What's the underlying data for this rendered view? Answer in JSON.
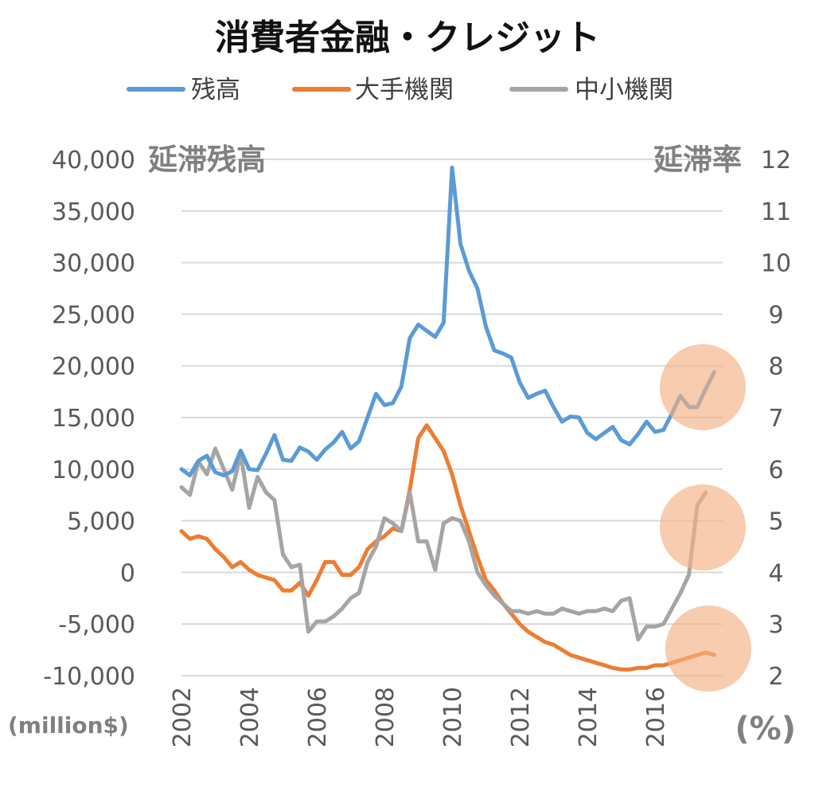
{
  "chart_data": {
    "type": "line",
    "title": "消費者金融・クレジット",
    "left_axis": {
      "label": "延滞残高",
      "unit": "(million$)",
      "ylim": [
        -10000,
        40000
      ],
      "ticks": [
        "40,000",
        "35,000",
        "30,000",
        "25,000",
        "20,000",
        "15,000",
        "10,000",
        "5,000",
        "0",
        "-5,000",
        "-10,000"
      ]
    },
    "right_axis": {
      "label": "延滞率",
      "unit": "(%)",
      "ylim": [
        2,
        12
      ],
      "ticks": [
        "12",
        "11",
        "10",
        "9",
        "8",
        "7",
        "6",
        "5",
        "4",
        "3",
        "2"
      ]
    },
    "x_ticks": [
      "2002",
      "2004",
      "2006",
      "2008",
      "2010",
      "2012",
      "2014",
      "2016"
    ],
    "xlim": [
      2002,
      2018
    ],
    "grid": "horizontal",
    "legend_position": "top",
    "series": [
      {
        "name": "残高",
        "axis": "left",
        "color": "#5b9bd5",
        "points": [
          [
            2002.0,
            10000
          ],
          [
            2002.25,
            9400
          ],
          [
            2002.5,
            10800
          ],
          [
            2002.75,
            11300
          ],
          [
            2003.0,
            9700
          ],
          [
            2003.25,
            9400
          ],
          [
            2003.5,
            9800
          ],
          [
            2003.75,
            11800
          ],
          [
            2004.0,
            10000
          ],
          [
            2004.25,
            9900
          ],
          [
            2004.5,
            11500
          ],
          [
            2004.75,
            13300
          ],
          [
            2005.0,
            10900
          ],
          [
            2005.25,
            10800
          ],
          [
            2005.5,
            12100
          ],
          [
            2005.75,
            11700
          ],
          [
            2006.0,
            10900
          ],
          [
            2006.25,
            11900
          ],
          [
            2006.5,
            12600
          ],
          [
            2006.75,
            13600
          ],
          [
            2007.0,
            12000
          ],
          [
            2007.25,
            12700
          ],
          [
            2007.5,
            15000
          ],
          [
            2007.75,
            17300
          ],
          [
            2008.0,
            16200
          ],
          [
            2008.25,
            16400
          ],
          [
            2008.5,
            18000
          ],
          [
            2008.75,
            22700
          ],
          [
            2009.0,
            24000
          ],
          [
            2009.25,
            23400
          ],
          [
            2009.5,
            22800
          ],
          [
            2009.75,
            24200
          ],
          [
            2010.0,
            39200
          ],
          [
            2010.25,
            31800
          ],
          [
            2010.5,
            29200
          ],
          [
            2010.75,
            27500
          ],
          [
            2011.0,
            23800
          ],
          [
            2011.25,
            21500
          ],
          [
            2011.5,
            21200
          ],
          [
            2011.75,
            20800
          ],
          [
            2012.0,
            18400
          ],
          [
            2012.25,
            16900
          ],
          [
            2012.5,
            17300
          ],
          [
            2012.75,
            17600
          ],
          [
            2013.0,
            16000
          ],
          [
            2013.25,
            14600
          ],
          [
            2013.5,
            15100
          ],
          [
            2013.75,
            15000
          ],
          [
            2014.0,
            13500
          ],
          [
            2014.25,
            12900
          ],
          [
            2014.5,
            13500
          ],
          [
            2014.75,
            14100
          ],
          [
            2015.0,
            12800
          ],
          [
            2015.25,
            12400
          ],
          [
            2015.5,
            13400
          ],
          [
            2015.75,
            14600
          ],
          [
            2016.0,
            13600
          ],
          [
            2016.25,
            13800
          ],
          [
            2016.5,
            15400
          ],
          [
            2016.75,
            17100
          ],
          [
            2017.0,
            16000
          ],
          [
            2017.25,
            16000
          ],
          [
            2017.5,
            17800
          ],
          [
            2017.75,
            19400
          ]
        ]
      },
      {
        "name": "大手機関",
        "axis": "right",
        "color": "#ed7d31",
        "points": [
          [
            2002.0,
            4.8
          ],
          [
            2002.25,
            4.65
          ],
          [
            2002.5,
            4.7
          ],
          [
            2002.75,
            4.65
          ],
          [
            2003.0,
            4.45
          ],
          [
            2003.25,
            4.3
          ],
          [
            2003.5,
            4.1
          ],
          [
            2003.75,
            4.2
          ],
          [
            2004.0,
            4.05
          ],
          [
            2004.25,
            3.95
          ],
          [
            2004.5,
            3.9
          ],
          [
            2004.75,
            3.85
          ],
          [
            2005.0,
            3.65
          ],
          [
            2005.25,
            3.65
          ],
          [
            2005.5,
            3.8
          ],
          [
            2005.75,
            3.55
          ],
          [
            2006.0,
            3.85
          ],
          [
            2006.25,
            4.2
          ],
          [
            2006.5,
            4.2
          ],
          [
            2006.75,
            3.95
          ],
          [
            2007.0,
            3.95
          ],
          [
            2007.25,
            4.1
          ],
          [
            2007.5,
            4.45
          ],
          [
            2007.75,
            4.6
          ],
          [
            2008.0,
            4.7
          ],
          [
            2008.25,
            4.85
          ],
          [
            2008.5,
            4.8
          ],
          [
            2008.75,
            5.6
          ],
          [
            2009.0,
            6.6
          ],
          [
            2009.25,
            6.85
          ],
          [
            2009.5,
            6.6
          ],
          [
            2009.75,
            6.35
          ],
          [
            2010.0,
            5.9
          ],
          [
            2010.25,
            5.3
          ],
          [
            2010.5,
            4.8
          ],
          [
            2010.75,
            4.3
          ],
          [
            2011.0,
            3.85
          ],
          [
            2011.25,
            3.65
          ],
          [
            2011.5,
            3.4
          ],
          [
            2011.75,
            3.2
          ],
          [
            2012.0,
            3.0
          ],
          [
            2012.25,
            2.85
          ],
          [
            2012.5,
            2.75
          ],
          [
            2012.75,
            2.65
          ],
          [
            2013.0,
            2.6
          ],
          [
            2013.25,
            2.5
          ],
          [
            2013.5,
            2.4
          ],
          [
            2013.75,
            2.35
          ],
          [
            2014.0,
            2.3
          ],
          [
            2014.25,
            2.25
          ],
          [
            2014.5,
            2.2
          ],
          [
            2014.75,
            2.15
          ],
          [
            2015.0,
            2.12
          ],
          [
            2015.25,
            2.12
          ],
          [
            2015.5,
            2.15
          ],
          [
            2015.75,
            2.15
          ],
          [
            2016.0,
            2.2
          ],
          [
            2016.25,
            2.2
          ],
          [
            2016.5,
            2.25
          ],
          [
            2016.75,
            2.3
          ],
          [
            2017.0,
            2.35
          ],
          [
            2017.25,
            2.4
          ],
          [
            2017.5,
            2.45
          ],
          [
            2017.75,
            2.4
          ]
        ]
      },
      {
        "name": "中小機関",
        "axis": "right",
        "color": "#a5a5a5",
        "points": [
          [
            2002.0,
            5.65
          ],
          [
            2002.25,
            5.5
          ],
          [
            2002.5,
            6.15
          ],
          [
            2002.75,
            5.9
          ],
          [
            2003.0,
            6.4
          ],
          [
            2003.25,
            6.0
          ],
          [
            2003.5,
            5.6
          ],
          [
            2003.75,
            6.3
          ],
          [
            2004.0,
            5.25
          ],
          [
            2004.25,
            5.85
          ],
          [
            2004.5,
            5.55
          ],
          [
            2004.75,
            5.4
          ],
          [
            2005.0,
            4.35
          ],
          [
            2005.25,
            4.1
          ],
          [
            2005.5,
            4.15
          ],
          [
            2005.75,
            2.85
          ],
          [
            2006.0,
            3.05
          ],
          [
            2006.25,
            3.05
          ],
          [
            2006.5,
            3.15
          ],
          [
            2006.75,
            3.3
          ],
          [
            2007.0,
            3.5
          ],
          [
            2007.25,
            3.6
          ],
          [
            2007.5,
            4.2
          ],
          [
            2007.75,
            4.5
          ],
          [
            2008.0,
            5.05
          ],
          [
            2008.25,
            4.95
          ],
          [
            2008.5,
            4.8
          ],
          [
            2008.75,
            5.55
          ],
          [
            2009.0,
            4.6
          ],
          [
            2009.25,
            4.6
          ],
          [
            2009.5,
            4.05
          ],
          [
            2009.75,
            4.95
          ],
          [
            2010.0,
            5.05
          ],
          [
            2010.25,
            5.0
          ],
          [
            2010.5,
            4.6
          ],
          [
            2010.75,
            4.0
          ],
          [
            2011.0,
            3.75
          ],
          [
            2011.25,
            3.55
          ],
          [
            2011.5,
            3.4
          ],
          [
            2011.75,
            3.25
          ],
          [
            2012.0,
            3.25
          ],
          [
            2012.25,
            3.2
          ],
          [
            2012.5,
            3.25
          ],
          [
            2012.75,
            3.2
          ],
          [
            2013.0,
            3.2
          ],
          [
            2013.25,
            3.3
          ],
          [
            2013.5,
            3.25
          ],
          [
            2013.75,
            3.2
          ],
          [
            2014.0,
            3.25
          ],
          [
            2014.25,
            3.25
          ],
          [
            2014.5,
            3.3
          ],
          [
            2014.75,
            3.25
          ],
          [
            2015.0,
            3.45
          ],
          [
            2015.25,
            3.5
          ],
          [
            2015.5,
            2.7
          ],
          [
            2015.75,
            2.95
          ],
          [
            2016.0,
            2.95
          ],
          [
            2016.25,
            3.0
          ],
          [
            2016.5,
            3.3
          ],
          [
            2016.75,
            3.6
          ],
          [
            2017.0,
            3.95
          ],
          [
            2017.25,
            5.3
          ],
          [
            2017.5,
            5.55
          ]
        ]
      }
    ],
    "annotations": [
      "highlight circles at the end of each series (2016–2017)"
    ]
  }
}
